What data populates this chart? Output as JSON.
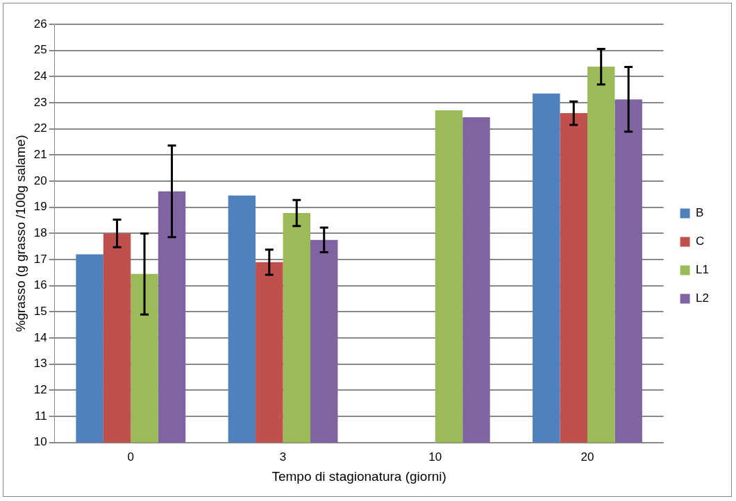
{
  "chart_data": {
    "type": "bar",
    "xlabel": "Tempo di stagionatura (giorni)",
    "ylabel": "%grasso (g grasso /100g salame)",
    "categories": [
      "0",
      "3",
      "10",
      "20"
    ],
    "series": [
      {
        "name": "B",
        "color": "#4f81bd",
        "values": [
          17.2,
          19.45,
          null,
          23.35
        ]
      },
      {
        "name": "C",
        "color": "#c0504d",
        "values": [
          18.0,
          16.9,
          null,
          22.6
        ],
        "errors": [
          0.53,
          0.48,
          null,
          0.45
        ]
      },
      {
        "name": "L1",
        "color": "#9bbb59",
        "values": [
          16.45,
          18.78,
          22.71,
          24.38
        ],
        "errors": [
          1.55,
          0.5,
          null,
          0.68
        ]
      },
      {
        "name": "L2",
        "color": "#8064a2",
        "values": [
          19.61,
          17.75,
          22.44,
          23.13
        ],
        "errors": [
          1.75,
          0.47,
          null,
          1.24
        ]
      }
    ],
    "ylim": [
      10,
      26
    ],
    "yticks": [
      10,
      11,
      12,
      13,
      14,
      15,
      16,
      17,
      18,
      19,
      20,
      21,
      22,
      23,
      24,
      25,
      26
    ],
    "grid": "y",
    "legend": "right"
  }
}
